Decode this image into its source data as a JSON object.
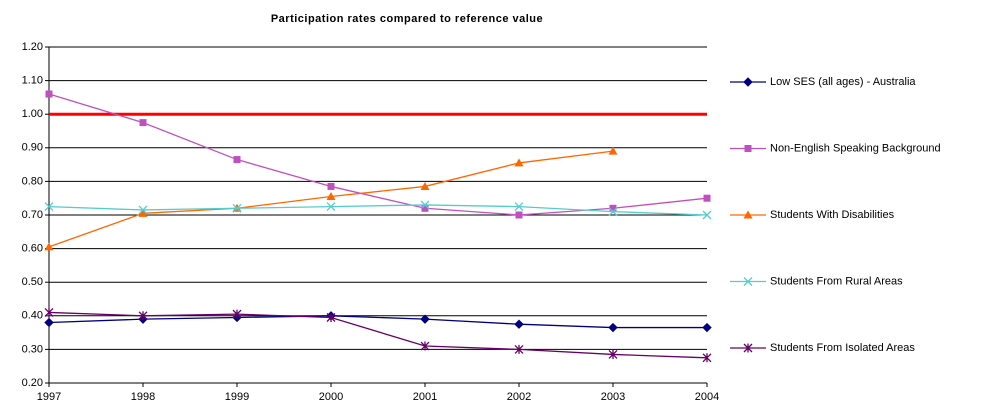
{
  "chart_data": {
    "type": "line",
    "title": "Participation rates compared to reference value",
    "categories": [
      "1997",
      "1998",
      "1999",
      "2000",
      "2001",
      "2002",
      "2003",
      "2004"
    ],
    "series": [
      {
        "name": "Low  SES (all ages) - Australia",
        "color": "#000080",
        "marker": "diamond",
        "values": [
          0.38,
          0.39,
          0.395,
          0.4,
          0.39,
          0.375,
          0.365,
          0.365
        ]
      },
      {
        "name": "Non-English Speaking Background",
        "color": "#c050c0",
        "marker": "square",
        "values": [
          1.06,
          0.975,
          0.865,
          0.785,
          0.72,
          0.7,
          0.72,
          0.75
        ]
      },
      {
        "name": "Students With Disabilities",
        "color": "#ff6600",
        "marker": "triangle",
        "values": [
          0.605,
          0.705,
          0.72,
          0.755,
          0.785,
          0.855,
          0.89,
          null
        ]
      },
      {
        "name": "Students From Rural Areas",
        "color": "#55cccc",
        "marker": "x",
        "values": [
          0.725,
          0.715,
          0.72,
          0.725,
          0.73,
          0.725,
          0.71,
          0.7
        ]
      },
      {
        "name": "Students From Isolated Areas",
        "color": "#660066",
        "marker": "asterisk",
        "values": [
          0.41,
          0.4,
          0.405,
          0.395,
          0.31,
          0.3,
          0.285,
          0.275
        ]
      }
    ],
    "reference_line": {
      "value": 1,
      "color": "#ff0000"
    },
    "ylim": [
      0.2,
      1.2
    ],
    "yticks": [
      {
        "value": 0.2,
        "label": "0.20"
      },
      {
        "value": 0.3,
        "label": "0.30"
      },
      {
        "value": 0.4,
        "label": "0.40"
      },
      {
        "value": 0.5,
        "label": "0.50"
      },
      {
        "value": 0.6,
        "label": "0.60"
      },
      {
        "value": 0.7,
        "label": "0.70"
      },
      {
        "value": 0.8,
        "label": "0.80"
      },
      {
        "value": 0.9,
        "label": "0.90"
      },
      {
        "value": 1,
        "label": "1.00"
      },
      {
        "value": 1.1,
        "label": "1.10"
      },
      {
        "value": 1.2,
        "label": "1.20"
      }
    ],
    "grid": true,
    "legend": "right"
  }
}
